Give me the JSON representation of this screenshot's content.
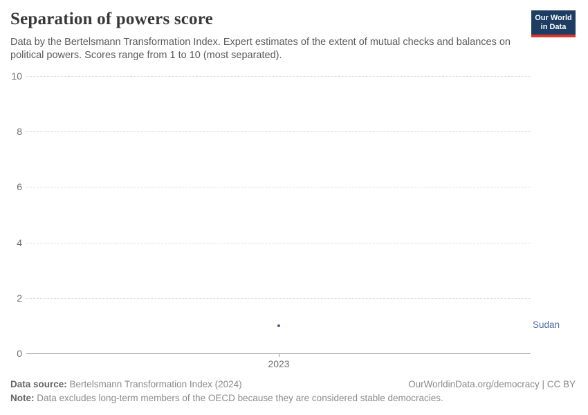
{
  "header": {
    "title": "Separation of powers score",
    "subtitle": "Data by the Bertelsmann Transformation Index. Expert estimates of the extent of mutual checks and balances on political powers. Scores range from 1 to 10 (most separated).",
    "logo": {
      "line1": "Our World",
      "line2": "in Data",
      "bg_color": "#1d3d63",
      "accent_color": "#dc352b"
    }
  },
  "chart_data": {
    "type": "scatter",
    "title": "Separation of powers score",
    "xlabel": "",
    "ylabel": "",
    "x": [
      2023
    ],
    "xticks": [
      "2023"
    ],
    "ylim": [
      0,
      10
    ],
    "yticks": [
      0,
      2,
      4,
      6,
      8,
      10
    ],
    "grid": "horizontal-dashed",
    "legend_position": "entity-label-right",
    "series": [
      {
        "name": "Sudan",
        "x": [
          2023
        ],
        "values": [
          1
        ]
      }
    ],
    "point_color": "#3b5ea6",
    "entity_label_color": "#4f6ea8"
  },
  "footer": {
    "source_label": "Data source:",
    "source_text": " Bertelsmann Transformation Index (2024)",
    "link_text": "OurWorldinData.org/democracy | CC BY",
    "note_label": "Note:",
    "note_text": " Data excludes long-term members of the OECD because they are considered stable democracies."
  }
}
